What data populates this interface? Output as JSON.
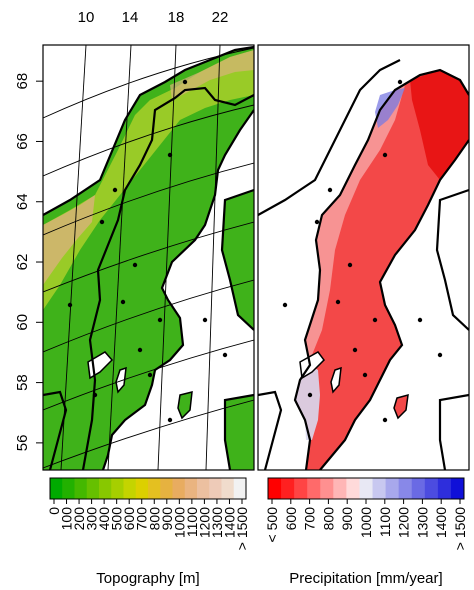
{
  "chart_data": [
    {
      "type": "heatmap",
      "title": "",
      "xlabel": "",
      "ylabel": "",
      "top_axis_ticks": [
        10,
        14,
        18,
        22
      ],
      "left_axis_ticks": [
        56,
        58,
        60,
        62,
        64,
        66,
        68
      ],
      "ylim": [
        55.1,
        69.2
      ],
      "grid": true,
      "colorbar": {
        "label": "Topography [m]",
        "tick_labels": [
          "0",
          "100",
          "200",
          "300",
          "400",
          "500",
          "600",
          "700",
          "800",
          "900",
          "1000",
          "1100",
          "1200",
          "1300",
          "1400",
          "> 1500"
        ],
        "colors": [
          "#00aa00",
          "#22b100",
          "#44b800",
          "#66c000",
          "#88c800",
          "#a6cf00",
          "#c4d400",
          "#dcd000",
          "#e4c020",
          "#e6b240",
          "#e8ac60",
          "#eab480",
          "#ecc0a0",
          "#eecbb8",
          "#f0dccc",
          "#f2f2f2"
        ]
      }
    },
    {
      "type": "heatmap",
      "title": "",
      "xlabel": "",
      "ylabel": "",
      "ylim": [
        55.1,
        69.2
      ],
      "grid": false,
      "colorbar": {
        "label": "Precipitation [mm/year]",
        "tick_labels": [
          "< 500",
          "600",
          "700",
          "800",
          "900",
          "1000",
          "1100",
          "1200",
          "1300",
          "1400",
          "> 1500"
        ],
        "colors": [
          "#ff0000",
          "#ff2020",
          "#ff4444",
          "#ff6a6a",
          "#ff9090",
          "#ffb6b6",
          "#ffdada",
          "#e8e8f4",
          "#c8c8f0",
          "#a8a8ec",
          "#8888e8",
          "#6a6ae4",
          "#4c4ce0",
          "#2e2edc",
          "#1010d8"
        ]
      }
    }
  ]
}
